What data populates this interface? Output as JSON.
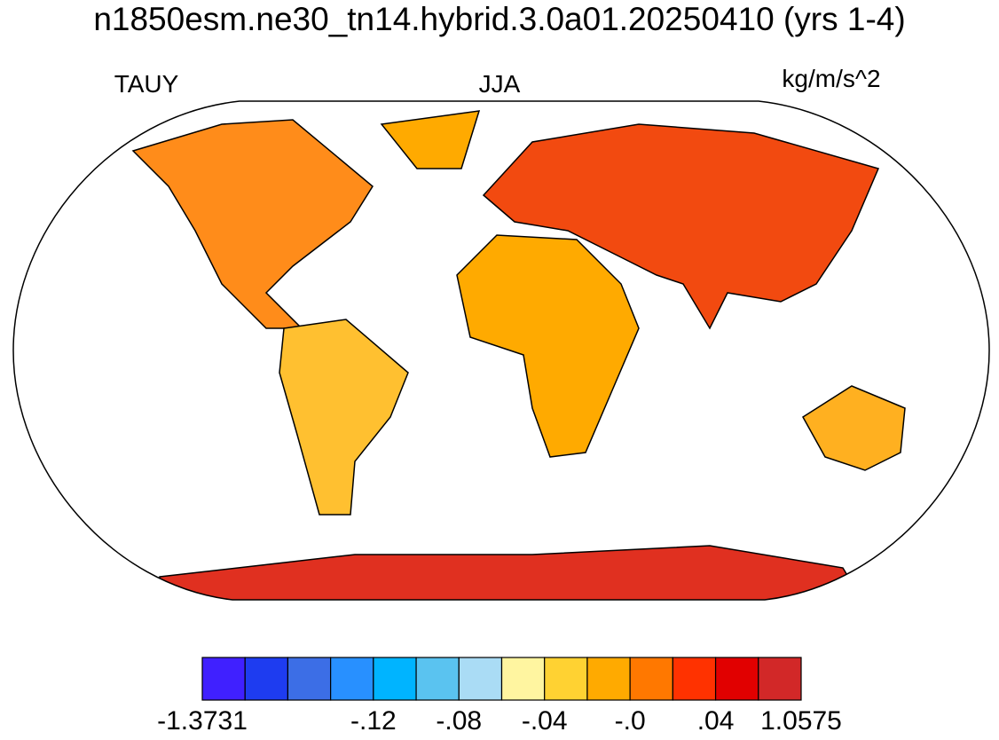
{
  "header": {
    "title": "n1850esm.ne30_tn14.hybrid.3.0a01.20250410 (yrs 1-4)"
  },
  "labels": {
    "variable": "TAUY",
    "season": "JJA",
    "units": "kg/m/s^2"
  },
  "colorbar": {
    "colors": [
      "#4020ff",
      "#1e3cf0",
      "#3c6ee6",
      "#2890ff",
      "#00b4ff",
      "#5ac3f0",
      "#aadcf5",
      "#fff5a0",
      "#ffd232",
      "#ffaa00",
      "#ff7800",
      "#ff3200",
      "#e10000",
      "#d22828"
    ],
    "labels": [
      "-1.3731",
      null,
      null,
      null,
      "-.12",
      null,
      "-.08",
      null,
      "-.04",
      null,
      "-.0",
      null,
      ".04",
      null,
      "1.0575"
    ]
  }
}
